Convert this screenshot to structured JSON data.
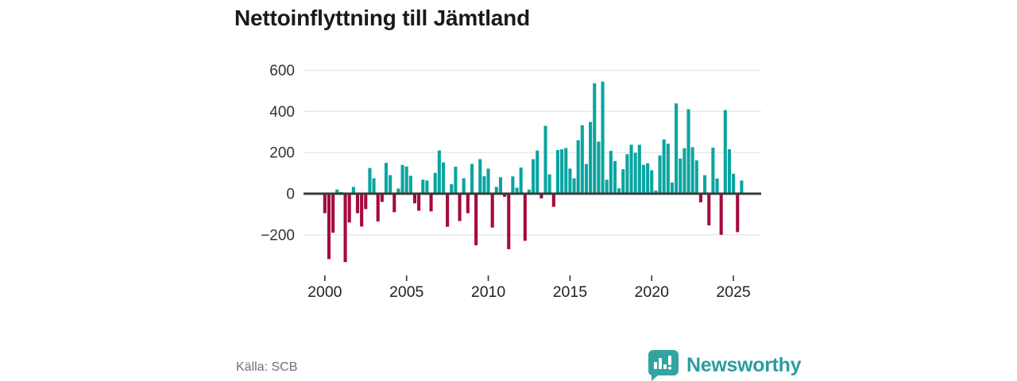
{
  "title": "Nettoinflyttning till Jämtland",
  "source": "Källa: SCB",
  "brand": {
    "name": "Newsworthy",
    "icon": "newsworthy-speech-bubble-barchart-icon"
  },
  "colors": {
    "background": "#ffffff",
    "positive_bar": "#0aa5a0",
    "negative_bar": "#a60a3c",
    "title_text": "#1a1a1a",
    "axis_text": "#333333",
    "gridline": "#e7e7e7",
    "zero_line": "#3a3a3a",
    "source_text": "#6e7178",
    "brand_teal": "#2b9d9e",
    "brand_icon": "#33a3a2"
  },
  "chart_data": {
    "type": "bar",
    "title": "Nettoinflyttning till Jämtland",
    "xlabel": "",
    "ylabel": "",
    "grid": "horizontal",
    "legend": "none",
    "ylim": [
      -360,
      640
    ],
    "y_ticks": [
      600,
      400,
      200,
      0,
      -200
    ],
    "x_tick_labels": [
      "2000",
      "2005",
      "2010",
      "2015",
      "2020",
      "2025"
    ],
    "x_tick_quarter_index": [
      0,
      20,
      40,
      60,
      80,
      100
    ],
    "period": "quarterly, 2000 Q1 – 2025 Q3",
    "categories": [
      "2000 Q1",
      "2000 Q2",
      "2000 Q3",
      "2000 Q4",
      "2001 Q1",
      "2001 Q2",
      "2001 Q3",
      "2001 Q4",
      "2002 Q1",
      "2002 Q2",
      "2002 Q3",
      "2002 Q4",
      "2003 Q1",
      "2003 Q2",
      "2003 Q3",
      "2003 Q4",
      "2004 Q1",
      "2004 Q2",
      "2004 Q3",
      "2004 Q4",
      "2005 Q1",
      "2005 Q2",
      "2005 Q3",
      "2005 Q4",
      "2006 Q1",
      "2006 Q2",
      "2006 Q3",
      "2006 Q4",
      "2007 Q1",
      "2007 Q2",
      "2007 Q3",
      "2007 Q4",
      "2008 Q1",
      "2008 Q2",
      "2008 Q3",
      "2008 Q4",
      "2009 Q1",
      "2009 Q2",
      "2009 Q3",
      "2009 Q4",
      "2010 Q1",
      "2010 Q2",
      "2010 Q3",
      "2010 Q4",
      "2011 Q1",
      "2011 Q2",
      "2011 Q3",
      "2011 Q4",
      "2012 Q1",
      "2012 Q2",
      "2012 Q3",
      "2012 Q4",
      "2013 Q1",
      "2013 Q2",
      "2013 Q3",
      "2013 Q4",
      "2014 Q1",
      "2014 Q2",
      "2014 Q3",
      "2014 Q4",
      "2015 Q1",
      "2015 Q2",
      "2015 Q3",
      "2015 Q4",
      "2016 Q1",
      "2016 Q2",
      "2016 Q3",
      "2016 Q4",
      "2017 Q1",
      "2017 Q2",
      "2017 Q3",
      "2017 Q4",
      "2018 Q1",
      "2018 Q2",
      "2018 Q3",
      "2018 Q4",
      "2019 Q1",
      "2019 Q2",
      "2019 Q3",
      "2019 Q4",
      "2020 Q1",
      "2020 Q2",
      "2020 Q3",
      "2020 Q4",
      "2021 Q1",
      "2021 Q2",
      "2021 Q3",
      "2021 Q4",
      "2022 Q1",
      "2022 Q2",
      "2022 Q3",
      "2022 Q4",
      "2023 Q1",
      "2023 Q2",
      "2023 Q3",
      "2023 Q4",
      "2024 Q1",
      "2024 Q2",
      "2024 Q3",
      "2024 Q4",
      "2025 Q1",
      "2025 Q2",
      "2025 Q3"
    ],
    "values": [
      -95,
      -318,
      -190,
      20,
      8,
      -333,
      -140,
      33,
      -95,
      -160,
      -75,
      125,
      75,
      -135,
      -40,
      150,
      90,
      -90,
      25,
      140,
      132,
      87,
      -47,
      -83,
      68,
      64,
      -86,
      101,
      210,
      152,
      -161,
      46,
      131,
      -133,
      75,
      -95,
      145,
      -251,
      168,
      85,
      122,
      -165,
      33,
      80,
      -15,
      -270,
      84,
      29,
      127,
      -229,
      20,
      168,
      210,
      -23,
      330,
      94,
      -64,
      212,
      216,
      222,
      122,
      75,
      260,
      333,
      144,
      349,
      537,
      253,
      545,
      68,
      208,
      159,
      26,
      119,
      192,
      238,
      199,
      238,
      140,
      148,
      114,
      15,
      186,
      264,
      243,
      54,
      439,
      171,
      221,
      411,
      226,
      162,
      -42,
      90,
      -154,
      224,
      74,
      -200,
      407,
      216,
      97,
      -187,
      64
    ]
  }
}
